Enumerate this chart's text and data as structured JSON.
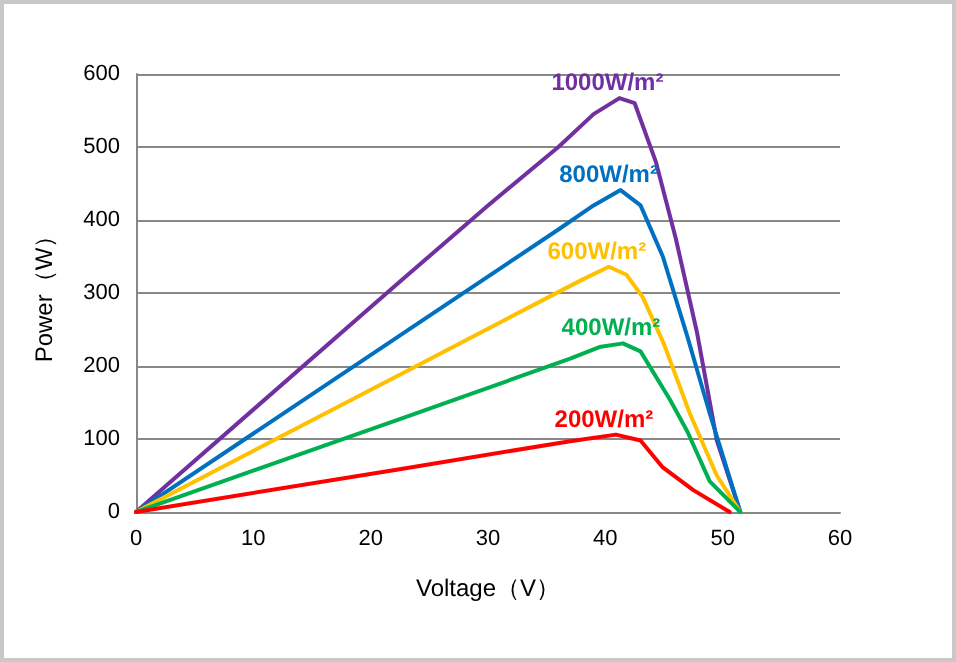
{
  "chart_data": {
    "type": "line",
    "xlabel": "Voltage（V）",
    "ylabel": "Power（W）",
    "xlim": [
      0,
      60
    ],
    "xticks": [
      0,
      10,
      20,
      30,
      40,
      50,
      60
    ],
    "ylim": [
      0,
      600
    ],
    "yticks": [
      0,
      100,
      200,
      300,
      400,
      500,
      600
    ],
    "grid": "y",
    "legend": false,
    "marker": "none",
    "line_style": "solid",
    "series": [
      {
        "name": "1000W/m²",
        "color": "#7030a0",
        "x": [
          0,
          22.6,
          30,
          36,
          39,
          41.2,
          42.5,
          44.3,
          46,
          47.8,
          49.5,
          51.5
        ],
        "values": [
          0,
          317,
          420,
          500,
          545,
          567,
          560,
          480,
          375,
          247,
          98,
          0
        ]
      },
      {
        "name": "800W/m²",
        "color": "#0070c0",
        "x": [
          0,
          22.6,
          36,
          39,
          41.3,
          43,
          44.9,
          47,
          48.9,
          51.5
        ],
        "values": [
          0,
          243,
          387,
          420,
          441,
          420,
          350,
          240,
          135,
          0
        ]
      },
      {
        "name": "600W/m²",
        "color": "#ffc000",
        "x": [
          0,
          22.6,
          35,
          38,
          40.3,
          41.8,
          43.2,
          45,
          47.2,
          49.5,
          51.5
        ],
        "values": [
          0,
          189,
          293,
          318,
          336,
          325,
          294,
          230,
          135,
          50,
          0
        ]
      },
      {
        "name": "400W/m²",
        "color": "#00b050",
        "x": [
          0,
          22.6,
          37,
          39.5,
          41.5,
          43,
          45.5,
          47,
          48.9,
          51.5
        ],
        "values": [
          0,
          128,
          210,
          226,
          231,
          220,
          154,
          110,
          42,
          0
        ]
      },
      {
        "name": "200W/m²",
        "color": "#ff0000",
        "x": [
          0,
          22.6,
          37,
          40.9,
          43,
          44.9,
          47.5,
          50.6
        ],
        "values": [
          0,
          59,
          97,
          106,
          98,
          61,
          30,
          0
        ]
      }
    ]
  }
}
